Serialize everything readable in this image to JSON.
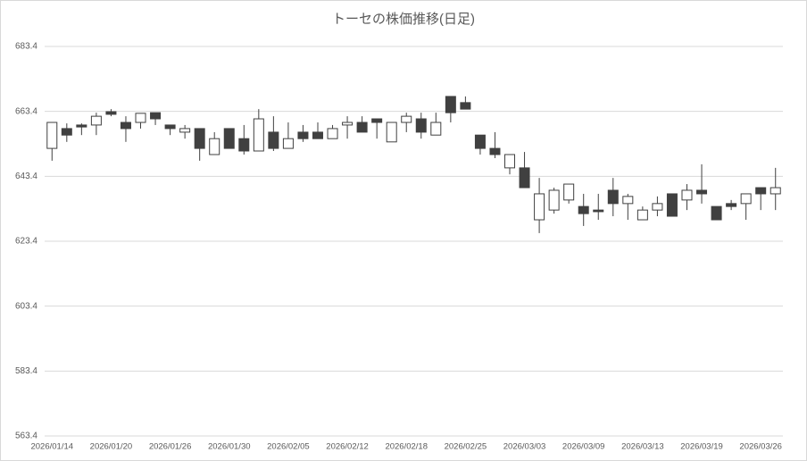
{
  "chart_data": {
    "type": "candlestick",
    "title": "トーセの株価推移(日足)",
    "categories": [
      "2026/01/14",
      null,
      null,
      null,
      "2026/01/20",
      null,
      null,
      null,
      "2026/01/26",
      null,
      null,
      null,
      "2026/01/30",
      null,
      null,
      null,
      "2026/02/05",
      null,
      null,
      null,
      "2026/02/12",
      null,
      null,
      null,
      "2026/02/18",
      null,
      null,
      null,
      "2026/02/25",
      null,
      null,
      null,
      "2026/03/03",
      null,
      null,
      null,
      "2026/03/09",
      null,
      null,
      null,
      "2026/03/13",
      null,
      null,
      null,
      "2026/03/19",
      null,
      null,
      null,
      "2026/03/26",
      null
    ],
    "open": [
      652.0,
      658.1,
      659.2,
      659.2,
      663.3,
      660.0,
      660.0,
      663.0,
      659.2,
      657.0,
      658.1,
      650.1,
      658.1,
      655.0,
      651.2,
      657.0,
      652.0,
      657.0,
      657.0,
      655.0,
      659.2,
      660.0,
      661.1,
      654.0,
      660.0,
      661.1,
      656.1,
      668.0,
      666.1,
      656.1,
      652.0,
      646.0,
      646.0,
      630.0,
      633.0,
      636.1,
      634.1,
      633.0,
      639.1,
      635.0,
      630.0,
      633.0,
      638.0,
      636.1,
      639.1,
      634.1,
      635.0,
      635.0,
      639.9,
      638.0
    ],
    "high": [
      660.0,
      659.7,
      659.7,
      663.0,
      664.1,
      661.9,
      662.8,
      663.0,
      659.2,
      659.2,
      658.1,
      657.0,
      658.1,
      659.2,
      664.1,
      661.9,
      660.0,
      659.2,
      660.0,
      659.2,
      661.9,
      661.9,
      661.1,
      660.0,
      663.0,
      663.0,
      663.0,
      668.0,
      668.0,
      656.1,
      657.0,
      650.1,
      650.9,
      642.9,
      639.9,
      641.0,
      638.0,
      638.0,
      642.9,
      638.0,
      634.1,
      637.2,
      638.0,
      641.0,
      647.1,
      634.1,
      636.1,
      638.0,
      639.9,
      646.0
    ],
    "low": [
      648.2,
      654.0,
      656.1,
      656.1,
      661.9,
      654.0,
      658.1,
      659.2,
      656.1,
      655.0,
      648.2,
      650.1,
      652.0,
      650.1,
      651.2,
      651.2,
      652.0,
      654.0,
      655.0,
      655.0,
      655.0,
      657.0,
      655.0,
      654.0,
      657.0,
      655.0,
      656.1,
      660.0,
      664.1,
      650.1,
      649.0,
      644.0,
      639.9,
      625.9,
      631.9,
      635.0,
      628.1,
      630.0,
      631.1,
      630.0,
      630.0,
      631.1,
      631.1,
      633.0,
      635.0,
      630.0,
      633.0,
      630.0,
      633.0,
      633.0
    ],
    "close": [
      660.0,
      656.1,
      658.6,
      661.9,
      662.5,
      658.1,
      662.8,
      661.1,
      658.1,
      658.1,
      652.0,
      655.0,
      652.0,
      651.2,
      661.1,
      652.0,
      655.0,
      655.0,
      655.0,
      658.1,
      660.0,
      657.0,
      660.0,
      660.0,
      661.9,
      657.0,
      660.0,
      663.0,
      664.1,
      652.0,
      650.1,
      650.1,
      639.9,
      638.0,
      639.1,
      641.0,
      631.9,
      632.5,
      635.0,
      637.2,
      633.0,
      635.0,
      631.1,
      639.1,
      638.0,
      630.0,
      634.1,
      638.0,
      638.0,
      639.9
    ],
    "up_color": "#ffffff",
    "down_color": "#404040",
    "ylim": [
      563.4,
      683.4
    ],
    "yticks": [
      563.4,
      583.4,
      603.4,
      623.4,
      643.4,
      663.4,
      683.4
    ],
    "grid": true
  }
}
